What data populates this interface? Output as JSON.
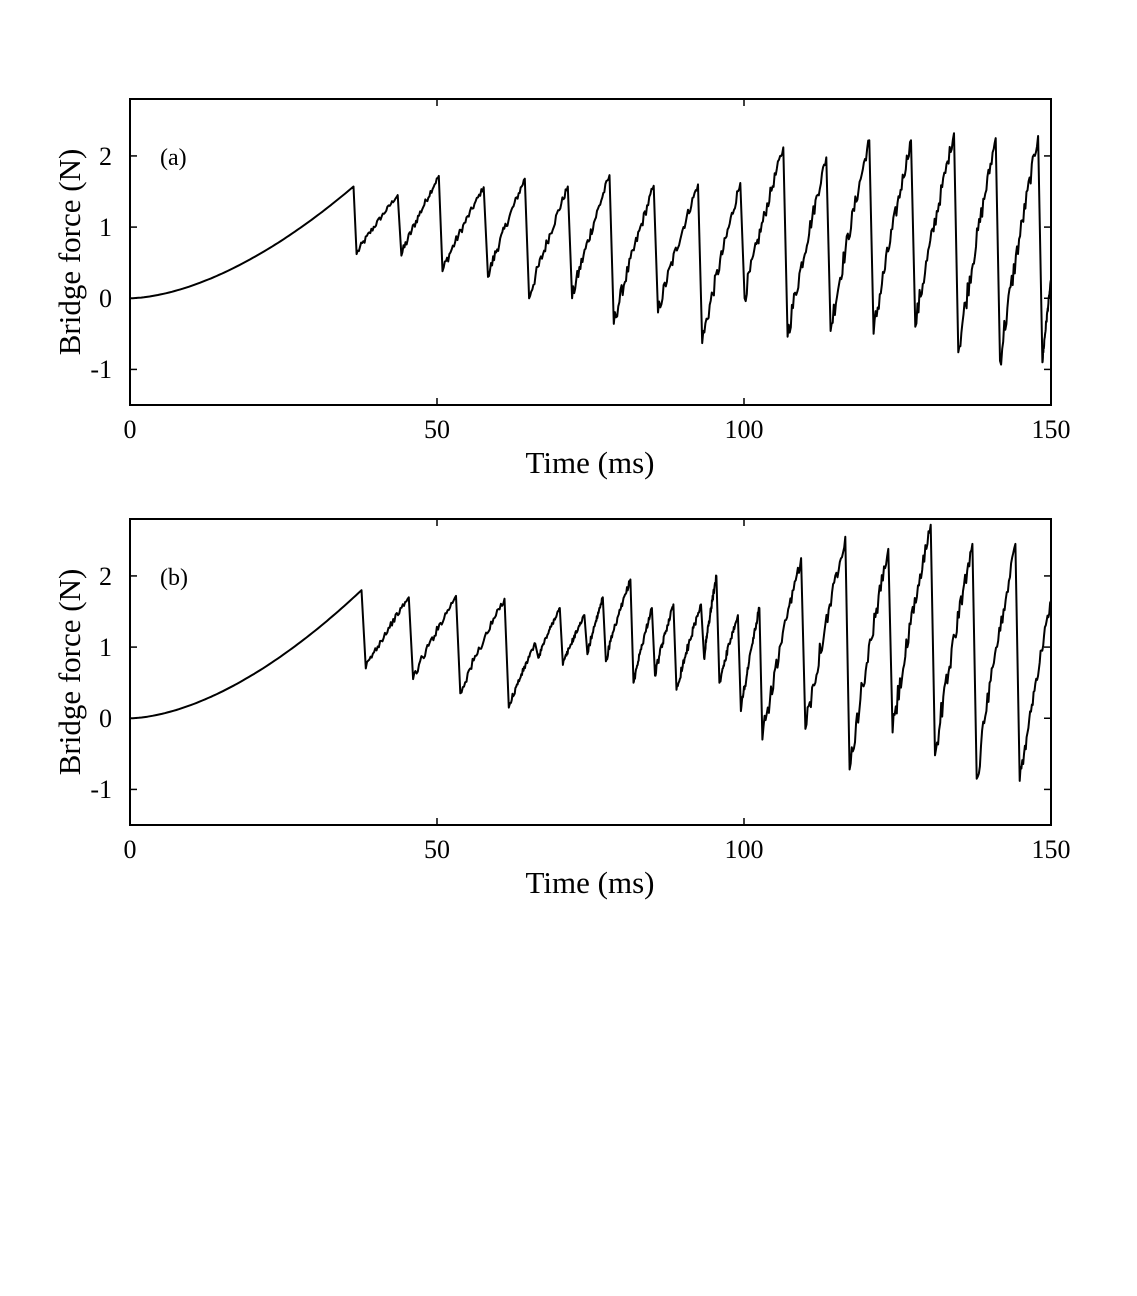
{
  "chart_data": [
    {
      "type": "line",
      "panel_label": "(a)",
      "xlabel": "Time (ms)",
      "ylabel": "Bridge force (N)",
      "xlim": [
        0,
        150
      ],
      "ylim": [
        -1.5,
        2.8
      ],
      "xticks": [
        0,
        50,
        100,
        150
      ],
      "xtick_labels": [
        "0",
        "50",
        "100",
        "150"
      ],
      "yticks": [
        -1,
        0,
        1,
        2
      ],
      "ytick_labels": [
        "-1",
        "0",
        "1",
        "2"
      ],
      "grid": false,
      "series": [
        {
          "name": "bridge force (a)",
          "color": "#000000",
          "initial": {
            "t_end": 36.4,
            "f_end": 1.57
          },
          "cycles": [
            {
              "t_start": 36.9,
              "t_peak": 43.6,
              "f_start": 0.62,
              "f_peak": 1.45
            },
            {
              "t_start": 44.2,
              "t_peak": 50.3,
              "f_start": 0.6,
              "f_peak": 1.72
            },
            {
              "t_start": 50.9,
              "t_peak": 57.6,
              "f_start": 0.38,
              "f_peak": 1.56
            },
            {
              "t_start": 58.3,
              "t_peak": 64.3,
              "f_start": 0.3,
              "f_peak": 1.68
            },
            {
              "t_start": 65.0,
              "t_peak": 71.3,
              "f_start": 0.0,
              "f_peak": 1.57
            },
            {
              "t_start": 72.0,
              "t_peak": 78.1,
              "f_start": 0.0,
              "f_peak": 1.73
            },
            {
              "t_start": 78.8,
              "t_peak": 85.3,
              "f_start": -0.36,
              "f_peak": 1.58
            },
            {
              "t_start": 86.0,
              "t_peak": 92.5,
              "f_start": -0.2,
              "f_peak": 1.6
            },
            {
              "t_start": 93.2,
              "t_peak": 99.4,
              "f_start": -0.63,
              "f_peak": 1.62
            },
            {
              "t_start": 100.1,
              "t_peak": 106.4,
              "f_start": 0.0,
              "f_peak": 2.12
            },
            {
              "t_start": 107.1,
              "t_peak": 113.4,
              "f_start": -0.54,
              "f_peak": 1.98
            },
            {
              "t_start": 114.1,
              "t_peak": 120.4,
              "f_start": -0.46,
              "f_peak": 2.22
            },
            {
              "t_start": 121.1,
              "t_peak": 127.2,
              "f_start": -0.5,
              "f_peak": 2.22
            },
            {
              "t_start": 127.9,
              "t_peak": 134.2,
              "f_start": -0.4,
              "f_peak": 2.32
            },
            {
              "t_start": 134.9,
              "t_peak": 141.0,
              "f_start": -0.76,
              "f_peak": 2.25
            },
            {
              "t_start": 141.7,
              "t_peak": 147.9,
              "f_start": -0.88,
              "f_peak": 2.28
            },
            {
              "t_start": 148.6,
              "t_peak": 150.0,
              "f_start": -0.9,
              "f_peak": 0.25
            }
          ]
        }
      ]
    },
    {
      "type": "line",
      "panel_label": "(b)",
      "xlabel": "Time (ms)",
      "ylabel": "Bridge force (N)",
      "xlim": [
        0,
        150
      ],
      "ylim": [
        -1.5,
        2.8
      ],
      "xticks": [
        0,
        50,
        100,
        150
      ],
      "xtick_labels": [
        "0",
        "50",
        "100",
        "150"
      ],
      "yticks": [
        -1,
        0,
        1,
        2
      ],
      "ytick_labels": [
        "-1",
        "0",
        "1",
        "2"
      ],
      "grid": false,
      "series": [
        {
          "name": "bridge force (b)",
          "color": "#000000",
          "initial": {
            "t_end": 37.7,
            "f_end": 1.8
          },
          "cycles": [
            {
              "t_start": 38.4,
              "t_peak": 45.4,
              "f_start": 0.7,
              "f_peak": 1.7
            },
            {
              "t_start": 46.1,
              "t_peak": 53.1,
              "f_start": 0.55,
              "f_peak": 1.72
            },
            {
              "t_start": 53.8,
              "t_peak": 61.0,
              "f_start": 0.35,
              "f_peak": 1.68
            },
            {
              "t_start": 61.7,
              "t_peak": 66.0,
              "f_start": 0.15,
              "f_peak": 1.05
            },
            {
              "t_start": 66.5,
              "t_peak": 70.0,
              "f_start": 0.85,
              "f_peak": 1.55
            },
            {
              "t_start": 70.5,
              "t_peak": 74.0,
              "f_start": 0.75,
              "f_peak": 1.45
            },
            {
              "t_start": 74.5,
              "t_peak": 77.0,
              "f_start": 0.9,
              "f_peak": 1.7
            },
            {
              "t_start": 77.5,
              "t_peak": 81.5,
              "f_start": 0.8,
              "f_peak": 1.95
            },
            {
              "t_start": 82.0,
              "t_peak": 85.0,
              "f_start": 0.5,
              "f_peak": 1.55
            },
            {
              "t_start": 85.5,
              "t_peak": 88.5,
              "f_start": 0.6,
              "f_peak": 1.6
            },
            {
              "t_start": 89.0,
              "t_peak": 93.0,
              "f_start": 0.4,
              "f_peak": 1.6
            },
            {
              "t_start": 93.5,
              "t_peak": 95.5,
              "f_start": 0.85,
              "f_peak": 2.0
            },
            {
              "t_start": 96.0,
              "t_peak": 99.0,
              "f_start": 0.5,
              "f_peak": 1.45
            },
            {
              "t_start": 99.5,
              "t_peak": 102.5,
              "f_start": 0.1,
              "f_peak": 1.55
            },
            {
              "t_start": 103.0,
              "t_peak": 109.3,
              "f_start": -0.3,
              "f_peak": 2.25
            },
            {
              "t_start": 110.0,
              "t_peak": 116.5,
              "f_start": -0.15,
              "f_peak": 2.55
            },
            {
              "t_start": 117.2,
              "t_peak": 123.5,
              "f_start": -0.72,
              "f_peak": 2.38
            },
            {
              "t_start": 124.2,
              "t_peak": 130.4,
              "f_start": -0.2,
              "f_peak": 2.72
            },
            {
              "t_start": 131.1,
              "t_peak": 137.2,
              "f_start": -0.52,
              "f_peak": 2.45
            },
            {
              "t_start": 137.9,
              "t_peak": 144.2,
              "f_start": -0.85,
              "f_peak": 2.45
            },
            {
              "t_start": 144.9,
              "t_peak": 150.0,
              "f_start": -0.88,
              "f_peak": 1.65
            }
          ]
        }
      ]
    }
  ]
}
